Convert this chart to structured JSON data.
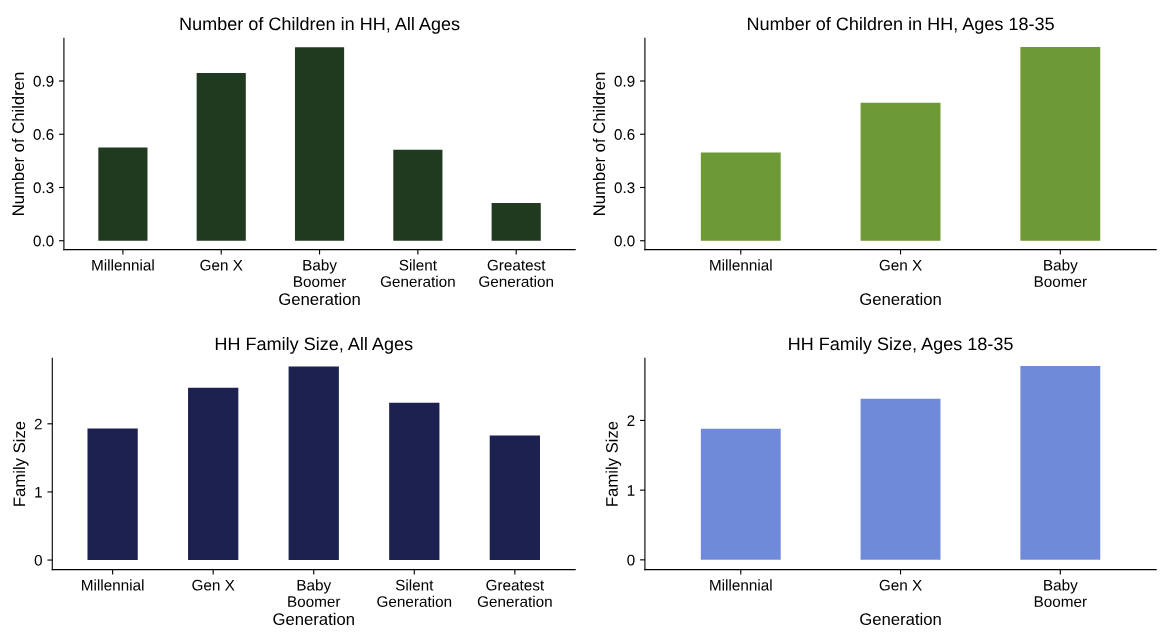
{
  "chart_data": [
    {
      "type": "bar",
      "title": "Number of Children in HH, All Ages",
      "xlabel": "Generation",
      "ylabel": "Number of Children",
      "categories": [
        "Millennial",
        "Gen X",
        "Baby\nBoomer",
        "Silent\nGeneration",
        "Greatest\nGeneration"
      ],
      "values": [
        0.525,
        0.945,
        1.09,
        0.513,
        0.212
      ],
      "color": "#1f3a1f",
      "ylim": [
        -0.05,
        1.14
      ],
      "yticks": [
        {
          "value": 0,
          "label": "0.0"
        },
        0.3,
        0.6,
        0.9
      ],
      "grid": false
    },
    {
      "type": "bar",
      "title": "Number of Children in HH, Ages 18-35",
      "xlabel": "Generation",
      "ylabel": "Number of Children",
      "categories": [
        "Millennial",
        "Gen X",
        "Baby\nBoomer"
      ],
      "values": [
        0.497,
        0.778,
        1.092
      ],
      "color": "#6e9a35",
      "ylim": [
        -0.05,
        1.14
      ],
      "yticks": [
        {
          "value": 0,
          "label": "0.0"
        },
        0.3,
        0.6,
        0.9
      ],
      "grid": false
    },
    {
      "type": "bar",
      "title": "HH Family Size, All Ages",
      "xlabel": "Generation",
      "ylabel": "Family Size",
      "categories": [
        "Millennial",
        "Gen X",
        "Baby\nBoomer",
        "Silent\nGeneration",
        "Greatest\nGeneration"
      ],
      "values": [
        1.93,
        2.53,
        2.84,
        2.31,
        1.83
      ],
      "color": "#1c2150",
      "ylim": [
        -0.14,
        2.96
      ],
      "yticks": [
        0,
        1,
        2
      ],
      "grid": false
    },
    {
      "type": "bar",
      "title": "HH Family Size, Ages 18-35",
      "xlabel": "Generation",
      "ylabel": "Family Size",
      "categories": [
        "Millennial",
        "Gen X",
        "Baby\nBoomer"
      ],
      "values": [
        1.88,
        2.31,
        2.78
      ],
      "color": "#6f8ad8",
      "ylim": [
        -0.14,
        2.89
      ],
      "yticks": [
        0,
        1,
        2
      ],
      "grid": false
    }
  ]
}
